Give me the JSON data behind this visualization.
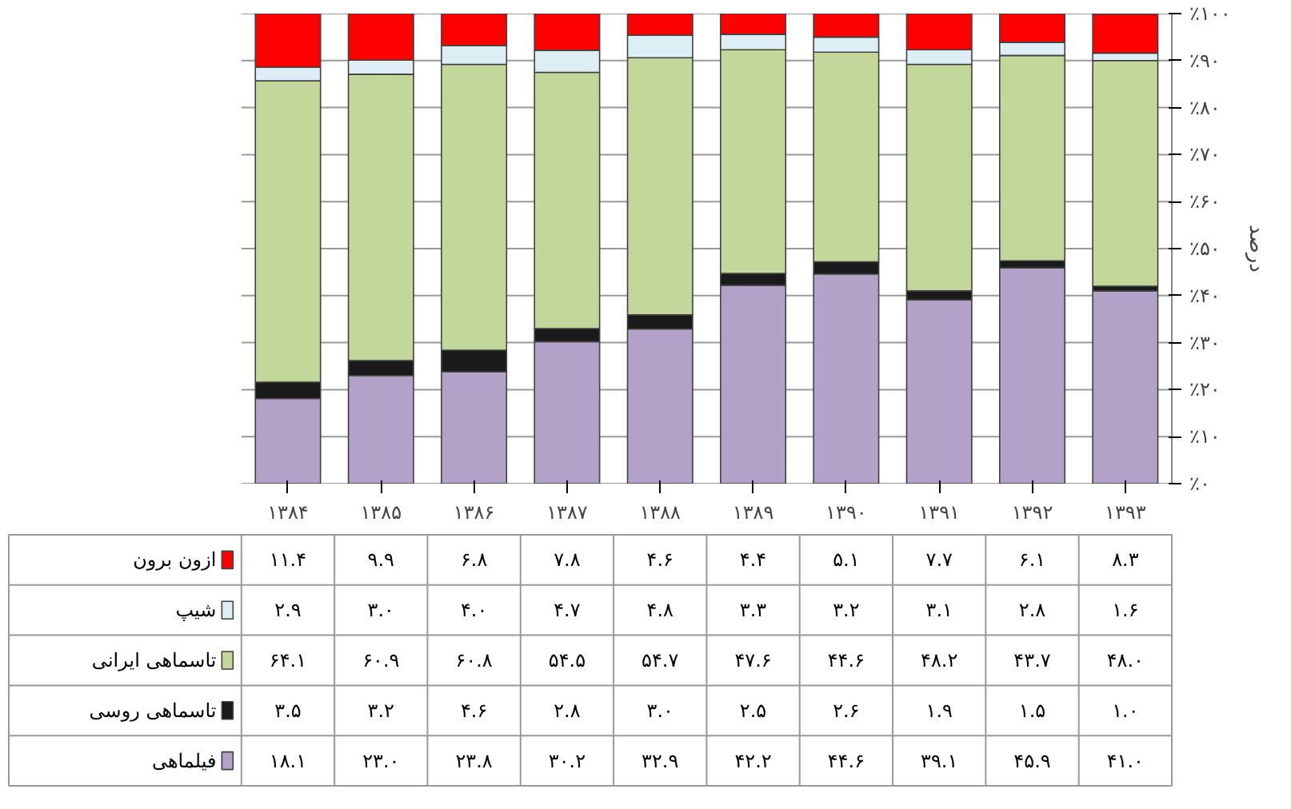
{
  "chart_data": {
    "type": "bar",
    "stacked": true,
    "ylabel": "درصد",
    "categories": [
      "۱۳۸۴",
      "۱۳۸۵",
      "۱۳۸۶",
      "۱۳۸۷",
      "۱۳۸۸",
      "۱۳۸۹",
      "۱۳۹۰",
      "۱۳۹۱",
      "۱۳۹۲",
      "۱۳۹۳"
    ],
    "series": [
      {
        "name": "فیلماهی",
        "color": "#b3a2c7",
        "values": [
          18.1,
          23.0,
          23.8,
          30.2,
          32.9,
          42.2,
          44.6,
          39.1,
          45.9,
          41.0
        ],
        "value_labels": [
          "۱۸.۱",
          "۲۳.۰",
          "۲۳.۸",
          "۳۰.۲",
          "۳۲.۹",
          "۴۲.۲",
          "۴۴.۶",
          "۳۹.۱",
          "۴۵.۹",
          "۴۱.۰"
        ]
      },
      {
        "name": "تاسماهی روسی",
        "color": "#1a1a1a",
        "values": [
          3.5,
          3.2,
          4.6,
          2.8,
          3.0,
          2.5,
          2.6,
          1.9,
          1.5,
          1.0
        ],
        "value_labels": [
          "۳.۵",
          "۳.۲",
          "۴.۶",
          "۲.۸",
          "۳.۰",
          "۲.۵",
          "۲.۶",
          "۱.۹",
          "۱.۵",
          "۱.۰"
        ]
      },
      {
        "name": "تاسماهی ایرانی",
        "color": "#c4d79b",
        "values": [
          64.1,
          60.9,
          60.8,
          54.5,
          54.7,
          47.6,
          44.6,
          48.2,
          43.7,
          48.0
        ],
        "value_labels": [
          "۶۴.۱",
          "۶۰.۹",
          "۶۰.۸",
          "۵۴.۵",
          "۵۴.۷",
          "۴۷.۶",
          "۴۴.۶",
          "۴۸.۲",
          "۴۳.۷",
          "۴۸.۰"
        ]
      },
      {
        "name": "شیپ",
        "color": "#ddeef5",
        "values": [
          2.9,
          3.0,
          4.0,
          4.7,
          4.8,
          3.3,
          3.2,
          3.1,
          2.8,
          1.6
        ],
        "value_labels": [
          "۲.۹",
          "۳.۰",
          "۴.۰",
          "۴.۷",
          "۴.۸",
          "۳.۳",
          "۳.۲",
          "۳.۱",
          "۲.۸",
          "۱.۶"
        ]
      },
      {
        "name": "ازون برون",
        "color": "#ff0000",
        "values": [
          11.4,
          9.9,
          6.8,
          7.8,
          4.6,
          4.4,
          5.1,
          7.7,
          6.1,
          8.3
        ],
        "value_labels": [
          "۱۱.۴",
          "۹.۹",
          "۶.۸",
          "۷.۸",
          "۴.۶",
          "۴.۴",
          "۵.۱",
          "۷.۷",
          "۶.۱",
          "۸.۳"
        ]
      }
    ],
    "ylim": [
      0,
      100
    ],
    "yticks": [
      {
        "value": 0,
        "label": "٪۰"
      },
      {
        "value": 10,
        "label": "٪۱۰"
      },
      {
        "value": 20,
        "label": "٪۲۰"
      },
      {
        "value": 30,
        "label": "٪۳۰"
      },
      {
        "value": 40,
        "label": "٪۴۰"
      },
      {
        "value": 50,
        "label": "٪۵۰"
      },
      {
        "value": 60,
        "label": "٪۶۰"
      },
      {
        "value": 70,
        "label": "٪۷۰"
      },
      {
        "value": 80,
        "label": "٪۸۰"
      },
      {
        "value": 90,
        "label": "٪۹۰"
      },
      {
        "value": 100,
        "label": "٪۱۰۰"
      }
    ],
    "grid": "y",
    "legend": "bottom left"
  }
}
